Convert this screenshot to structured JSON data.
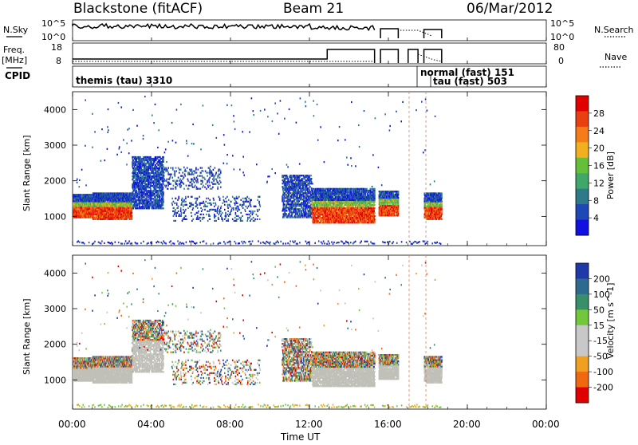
{
  "header": {
    "station": "Blackstone (fitACF)",
    "beam": "Beam 21",
    "date": "06/Mar/2012"
  },
  "top_panels": {
    "nsky_label": "N.Sky",
    "nsearch_label": "N.Search",
    "freq_label": "Freq.",
    "freq_unit": "[MHz]",
    "nave_label": "Nave",
    "cpid_label": "CPID",
    "nsky_ticks": [
      "10^5",
      "10^0"
    ],
    "nsky_right_ticks": [
      "10^5",
      "10^0"
    ],
    "freq_ticks": [
      "18",
      "8"
    ],
    "nave_ticks": [
      "80",
      "0"
    ],
    "cpid_entries": [
      "themis (tau) 3310",
      "normal (fast) 151",
      "tau (fast) 503"
    ]
  },
  "colors": {
    "power_scale": [
      "#1010e0",
      "#1f47b5",
      "#2d7a8a",
      "#3fa868",
      "#64c03a",
      "#f0b020",
      "#f57c18",
      "#e84010",
      "#e00000"
    ],
    "velocity_scale": [
      "#1f3aa8",
      "#2e6a90",
      "#37906a",
      "#72c83a",
      "#c8c8c8",
      "#c8c8c8",
      "#f0a020",
      "#f06810",
      "#e00000"
    ],
    "ground_scatter": "#c0c0b8"
  },
  "chart_data": [
    {
      "type": "heatmap",
      "name": "",
      "ylabel": "Slant Range [km]",
      "ylim": [
        180,
        4500
      ],
      "xlim": [
        "00:00",
        "24:00"
      ],
      "yticks": [
        "1000",
        "2000",
        "3000",
        "4000"
      ],
      "colorbar": {
        "label": "Power [dB]",
        "range": [
          0,
          32
        ],
        "ticks": [
          "4",
          "8",
          "12",
          "16",
          "20",
          "24",
          "28"
        ]
      },
      "regions": [
        {
          "t0": 0.0,
          "t1": 1.0,
          "r0": 1000,
          "r1": 1650,
          "value": "high"
        },
        {
          "t0": 1.0,
          "t1": 3.0,
          "r0": 950,
          "r1": 1700,
          "value": "high"
        },
        {
          "t0": 3.0,
          "t1": 4.5,
          "r0": 1200,
          "r1": 2700,
          "value": "mid"
        },
        {
          "t0": 10.5,
          "t1": 12.0,
          "r0": 1000,
          "r1": 2100,
          "value": "mid"
        },
        {
          "t0": 12.0,
          "t1": 15.3,
          "r0": 850,
          "r1": 1700,
          "value": "high"
        },
        {
          "t0": 15.5,
          "t1": 16.5,
          "r0": 1050,
          "r1": 1700,
          "value": "high"
        },
        {
          "t0": 17.8,
          "t1": 18.7,
          "r0": 950,
          "r1": 1500,
          "value": "high"
        }
      ]
    },
    {
      "type": "heatmap",
      "name": "",
      "ylabel": "Slant Range [km]",
      "ylim": [
        180,
        4500
      ],
      "xlim": [
        "00:00",
        "24:00"
      ],
      "yticks": [
        "1000",
        "2000",
        "3000",
        "4000"
      ],
      "xticks": [
        "00:00",
        "04:00",
        "08:00",
        "12:00",
        "16:00",
        "20:00",
        "00:00"
      ],
      "xlabel": "Time UT",
      "colorbar": {
        "label": "Velocity [m s^-1]",
        "range": [
          -250,
          250
        ],
        "ticks": [
          "200",
          "100",
          "50",
          "15",
          "-15",
          "-50",
          "-100",
          "-200"
        ]
      }
    }
  ]
}
